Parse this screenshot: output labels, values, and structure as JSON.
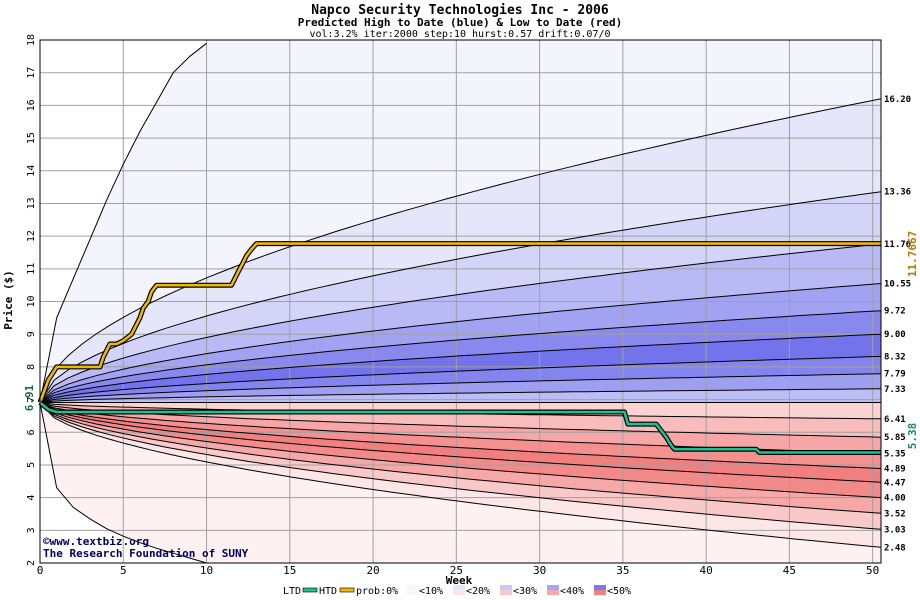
{
  "chart_data": {
    "type": "area",
    "title": "Napco Security Technologies Inc - 2006",
    "subtitle": "Predicted High to Date (blue) &  Low to Date (red)",
    "params": "vol:3.2% iter:2000 step:10 hurst:0.57 drift:0.07/0",
    "xlabel": "Week",
    "ylabel": "Price ($)",
    "xlim": [
      0,
      50.5
    ],
    "ylim": [
      2,
      18
    ],
    "xticks": [
      0,
      5,
      10,
      15,
      20,
      25,
      30,
      35,
      40,
      45,
      50
    ],
    "yticks": [
      2,
      3,
      4,
      5,
      6,
      7,
      8,
      9,
      10,
      11,
      12,
      13,
      14,
      15,
      16,
      17,
      18
    ],
    "start_price": 6.91,
    "start_label": "6.91",
    "htd_final_label": "11.7667",
    "ltd_final_label": "5.38",
    "credit_line1": "©www.textbiz.org",
    "credit_line2": "The Research Foundation of SUNY",
    "high_levels": [
      {
        "label": "16.20",
        "value": 16.2,
        "fill": "#e6e6fb"
      },
      {
        "label": "13.36",
        "value": 13.36,
        "fill": "#d4d4f8"
      },
      {
        "label": "11.76",
        "value": 11.76,
        "fill": "#b9b9f5"
      },
      {
        "label": "10.55",
        "value": 10.55,
        "fill": "#a2a2f2"
      },
      {
        "label": "9.72",
        "value": 9.72,
        "fill": "#8888ef"
      },
      {
        "label": "9.00",
        "value": 9.0,
        "fill": "#7373ec"
      },
      {
        "label": "8.32",
        "value": 8.32,
        "fill": "#8484ee"
      },
      {
        "label": "7.79",
        "value": 7.79,
        "fill": "#9f9ff2"
      },
      {
        "label": "7.33",
        "value": 7.33,
        "fill": "#bdbdf6"
      }
    ],
    "low_levels": [
      {
        "label": "6.41",
        "value": 6.41,
        "fill": "#fbd2d2"
      },
      {
        "label": "5.85",
        "value": 5.85,
        "fill": "#f8bcbc"
      },
      {
        "label": "5.35",
        "value": 5.35,
        "fill": "#f6a6a6"
      },
      {
        "label": "4.89",
        "value": 4.89,
        "fill": "#f49090"
      },
      {
        "label": "4.47",
        "value": 4.47,
        "fill": "#f17f7f"
      },
      {
        "label": "4.00",
        "value": 4.0,
        "fill": "#f38a8a"
      },
      {
        "label": "3.52",
        "value": 3.52,
        "fill": "#f6a8a8"
      },
      {
        "label": "3.03",
        "value": 3.03,
        "fill": "#f9c8c8"
      },
      {
        "label": "2.48",
        "value": 2.48,
        "fill": "#fce6e6"
      }
    ],
    "outer_high": {
      "x": [
        0,
        1,
        2,
        3,
        4,
        5,
        6,
        7,
        8,
        9,
        10
      ],
      "y": [
        6.91,
        9.5,
        10.7,
        11.9,
        13.1,
        14.2,
        15.2,
        16.1,
        17.0,
        17.5,
        17.9
      ]
    },
    "outer_low": {
      "x": [
        0,
        1,
        2,
        3,
        4,
        5,
        6,
        7,
        8,
        9,
        10
      ],
      "y": [
        6.91,
        4.3,
        3.7,
        3.35,
        3.05,
        2.82,
        2.62,
        2.45,
        2.3,
        2.15,
        2.0
      ]
    },
    "htd_series": {
      "name": "HTD",
      "color": "#f0b800",
      "x": [
        0,
        0.5,
        1,
        3.6,
        3.8,
        4.0,
        4.2,
        4.6,
        5.0,
        5.5,
        5.7,
        6.0,
        6.2,
        6.5,
        6.7,
        7.0,
        11.5,
        11.8,
        12.0,
        12.2,
        12.4,
        12.7,
        13.0,
        50.5
      ],
      "y": [
        6.91,
        7.6,
        8.0,
        8.0,
        8.3,
        8.5,
        8.7,
        8.7,
        8.8,
        9.0,
        9.2,
        9.5,
        9.8,
        10.0,
        10.3,
        10.5,
        10.5,
        10.8,
        11.0,
        11.2,
        11.4,
        11.6,
        11.77,
        11.77
      ]
    },
    "ltd_series": {
      "name": "LTD",
      "color": "#20c090",
      "x": [
        0,
        0.5,
        1,
        35.1,
        35.3,
        37.0,
        37.3,
        37.6,
        37.9,
        38.1,
        43.0,
        43.2,
        50.5
      ],
      "y": [
        6.91,
        6.7,
        6.62,
        6.62,
        6.25,
        6.25,
        6.05,
        5.85,
        5.6,
        5.48,
        5.48,
        5.38,
        5.38
      ]
    },
    "legend": {
      "position": "bottom",
      "ltd": "LTD",
      "htd": "HTD",
      "prob": "prob:0%",
      "bins": [
        {
          "label": "<10%",
          "color": "#f6f6fe",
          "color2": "#fef6f6"
        },
        {
          "label": "<20%",
          "color": "#e6e6fb",
          "color2": "#fce6e6"
        },
        {
          "label": "<30%",
          "color": "#c8c8f6",
          "color2": "#f9c8c8"
        },
        {
          "label": "<40%",
          "color": "#a6a6f2",
          "color2": "#f6a6a6"
        },
        {
          "label": "<50%",
          "color": "#7a7aec",
          "color2": "#f17f7f"
        }
      ]
    }
  }
}
